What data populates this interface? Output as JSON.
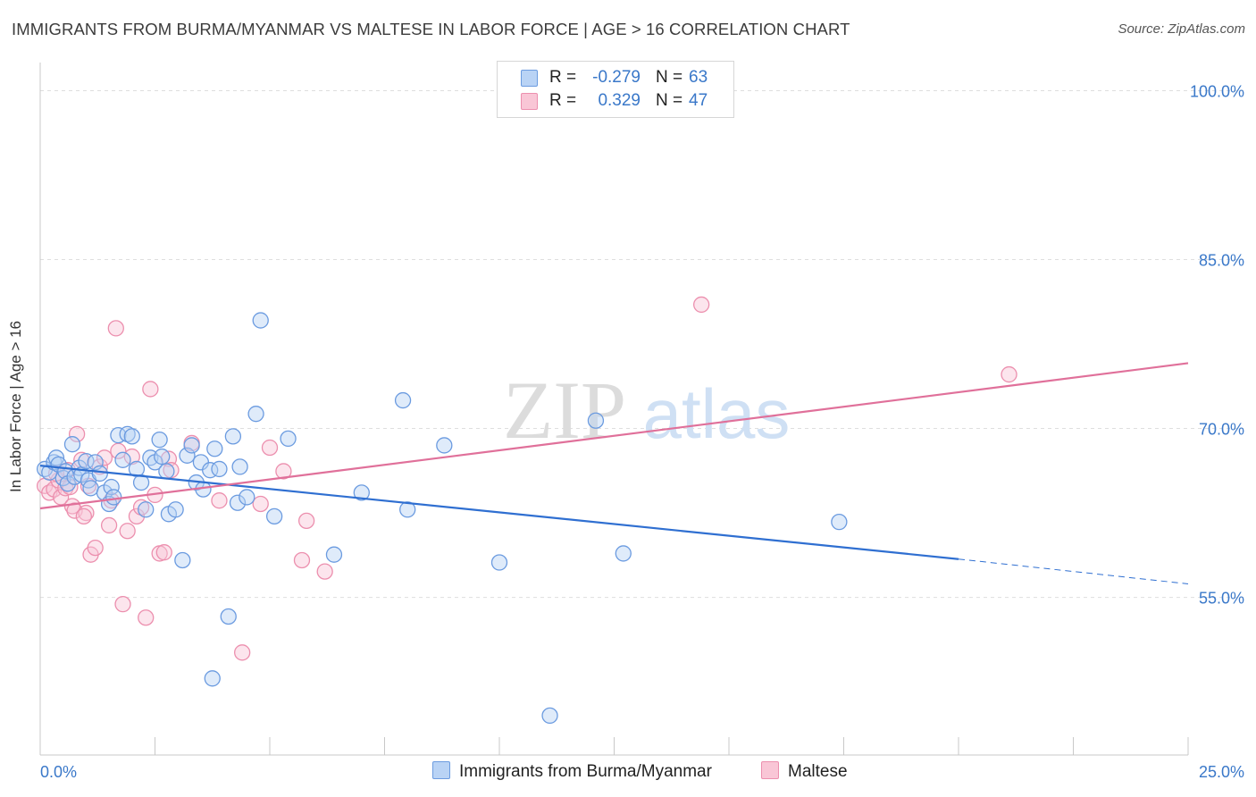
{
  "title": "IMMIGRANTS FROM BURMA/MYANMAR VS MALTESE IN LABOR FORCE | AGE > 16 CORRELATION CHART",
  "source": "Source: ZipAtlas.com",
  "watermark": {
    "zip": "ZIP",
    "atlas": "atlas"
  },
  "legend": {
    "rows": [
      {
        "r_label": "R =",
        "r_value": "-0.279",
        "n_label": "N =",
        "n_value": "63",
        "color_fill": "#b9d3f5",
        "color_stroke": "#6b9be0"
      },
      {
        "r_label": "R =",
        "r_value": "0.329",
        "n_label": "N =",
        "n_value": "47",
        "color_fill": "#f9c6d6",
        "color_stroke": "#ec8fae"
      }
    ]
  },
  "bottom_legend": {
    "series1": "Immigrants from Burma/Myanmar",
    "series2": "Maltese"
  },
  "chart_data": {
    "type": "scatter",
    "title": "IMMIGRANTS FROM BURMA/MYANMAR VS MALTESE IN LABOR FORCE | AGE > 16 CORRELATION CHART",
    "xlabel": "",
    "ylabel": "In Labor Force | Age > 16",
    "xlim": [
      0,
      25
    ],
    "ylim": [
      41,
      102.5
    ],
    "x_tick_labels": [
      {
        "value": 0,
        "label": "0.0%"
      },
      {
        "value": 25,
        "label": "25.0%"
      }
    ],
    "y_tick_labels": [
      {
        "value": 100,
        "label": "100.0%"
      },
      {
        "value": 85,
        "label": "85.0%"
      },
      {
        "value": 70,
        "label": "70.0%"
      },
      {
        "value": 55,
        "label": "55.0%"
      }
    ],
    "x_minor_ticks": [
      2.5,
      5,
      7.5,
      10,
      12.5,
      15,
      17.5,
      20,
      22.5,
      25
    ],
    "grid": "horizontal dashed",
    "legend_position": "top-center",
    "colors": {
      "series1": "#3a78c9",
      "series2": "#e0709a"
    },
    "series": [
      {
        "name": "Immigrants from Burma/Myanmar",
        "color": "#6b9be0",
        "trend": {
          "x0": 0,
          "y0": 66.7,
          "x1": 20,
          "y1": 58.4,
          "dashed_to_x": 25,
          "dashed_to_y": 56.2
        },
        "points": [
          [
            0.1,
            66.4
          ],
          [
            0.2,
            66.1
          ],
          [
            0.3,
            67.0
          ],
          [
            0.35,
            67.4
          ],
          [
            0.4,
            66.8
          ],
          [
            0.5,
            65.6
          ],
          [
            0.55,
            66.2
          ],
          [
            0.6,
            65.1
          ],
          [
            0.7,
            68.6
          ],
          [
            0.75,
            65.7
          ],
          [
            0.85,
            66.5
          ],
          [
            0.9,
            65.9
          ],
          [
            1.0,
            67.1
          ],
          [
            1.05,
            65.4
          ],
          [
            1.1,
            64.7
          ],
          [
            1.2,
            67.0
          ],
          [
            1.3,
            66.0
          ],
          [
            1.4,
            64.3
          ],
          [
            1.5,
            63.3
          ],
          [
            1.55,
            64.8
          ],
          [
            1.6,
            63.9
          ],
          [
            1.7,
            69.4
          ],
          [
            1.8,
            67.2
          ],
          [
            1.9,
            69.5
          ],
          [
            2.0,
            69.3
          ],
          [
            2.1,
            66.4
          ],
          [
            2.2,
            65.2
          ],
          [
            2.3,
            62.8
          ],
          [
            2.4,
            67.4
          ],
          [
            2.5,
            67.0
          ],
          [
            2.6,
            69.0
          ],
          [
            2.65,
            67.5
          ],
          [
            2.75,
            66.2
          ],
          [
            2.8,
            62.4
          ],
          [
            2.95,
            62.8
          ],
          [
            3.1,
            58.3
          ],
          [
            3.2,
            67.6
          ],
          [
            3.3,
            68.5
          ],
          [
            3.4,
            65.2
          ],
          [
            3.5,
            67.0
          ],
          [
            3.55,
            64.6
          ],
          [
            3.7,
            66.3
          ],
          [
            3.75,
            47.8
          ],
          [
            3.8,
            68.2
          ],
          [
            3.9,
            66.4
          ],
          [
            4.1,
            53.3
          ],
          [
            4.2,
            69.3
          ],
          [
            4.3,
            63.4
          ],
          [
            4.35,
            66.6
          ],
          [
            4.5,
            63.9
          ],
          [
            4.7,
            71.3
          ],
          [
            4.8,
            79.6
          ],
          [
            5.1,
            62.2
          ],
          [
            5.4,
            69.1
          ],
          [
            6.4,
            58.8
          ],
          [
            7.0,
            64.3
          ],
          [
            7.9,
            72.5
          ],
          [
            8.0,
            62.8
          ],
          [
            8.8,
            68.5
          ],
          [
            10.0,
            58.1
          ],
          [
            11.1,
            44.5
          ],
          [
            12.1,
            70.7
          ],
          [
            12.7,
            58.9
          ],
          [
            17.4,
            61.7
          ]
        ]
      },
      {
        "name": "Maltese",
        "color": "#ec8fae",
        "trend": {
          "x0": 0,
          "y0": 62.9,
          "x1": 25,
          "y1": 75.8
        },
        "points": [
          [
            0.1,
            64.9
          ],
          [
            0.2,
            64.3
          ],
          [
            0.3,
            64.6
          ],
          [
            0.4,
            65.4
          ],
          [
            0.45,
            63.9
          ],
          [
            0.55,
            64.7
          ],
          [
            0.6,
            66.3
          ],
          [
            0.7,
            63.1
          ],
          [
            0.75,
            62.7
          ],
          [
            0.8,
            69.5
          ],
          [
            0.9,
            67.2
          ],
          [
            1.0,
            62.5
          ],
          [
            1.05,
            64.9
          ],
          [
            1.1,
            58.8
          ],
          [
            1.2,
            59.4
          ],
          [
            1.3,
            66.6
          ],
          [
            1.4,
            67.4
          ],
          [
            1.5,
            61.4
          ],
          [
            1.55,
            63.6
          ],
          [
            1.65,
            78.9
          ],
          [
            1.7,
            68.0
          ],
          [
            1.8,
            54.4
          ],
          [
            1.9,
            60.9
          ],
          [
            2.0,
            67.5
          ],
          [
            2.1,
            62.2
          ],
          [
            2.2,
            63.0
          ],
          [
            2.3,
            53.2
          ],
          [
            2.4,
            73.5
          ],
          [
            2.5,
            64.1
          ],
          [
            2.6,
            58.9
          ],
          [
            2.7,
            59.0
          ],
          [
            2.8,
            67.3
          ],
          [
            2.85,
            66.3
          ],
          [
            3.3,
            68.7
          ],
          [
            3.9,
            63.6
          ],
          [
            4.4,
            50.1
          ],
          [
            4.8,
            63.3
          ],
          [
            5.0,
            68.3
          ],
          [
            5.3,
            66.2
          ],
          [
            5.7,
            58.3
          ],
          [
            5.8,
            61.8
          ],
          [
            6.2,
            57.3
          ],
          [
            14.4,
            81.0
          ],
          [
            21.1,
            74.8
          ],
          [
            0.35,
            66.0
          ],
          [
            0.65,
            64.8
          ],
          [
            0.95,
            62.2
          ]
        ]
      }
    ]
  }
}
